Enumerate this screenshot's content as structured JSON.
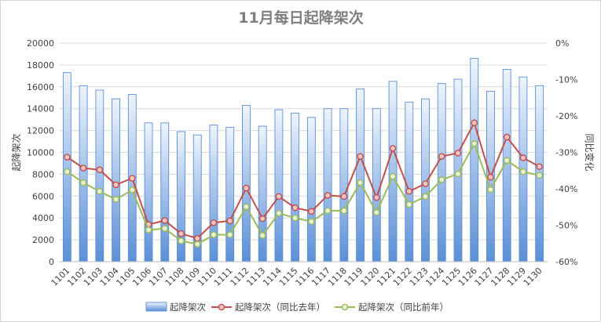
{
  "chart_data": {
    "type": "bar",
    "title": "11月每日起降架次",
    "ylabel": "起降架次",
    "y2label": "同比变化",
    "ylim": [
      0,
      20000
    ],
    "y_ticks": [
      0,
      2000,
      4000,
      6000,
      8000,
      10000,
      12000,
      14000,
      16000,
      18000,
      20000
    ],
    "y2lim": [
      -60,
      0
    ],
    "y2_ticks": [
      0,
      -10,
      -20,
      -30,
      -40,
      -50,
      -60
    ],
    "y2_unit": "%",
    "legend_position": "bottom",
    "grid": true,
    "categories": [
      "1101",
      "1102",
      "1103",
      "1104",
      "1105",
      "1106",
      "1107",
      "1108",
      "1109",
      "1110",
      "1111",
      "1112",
      "1113",
      "1114",
      "1115",
      "1116",
      "1117",
      "1118",
      "1119",
      "1120",
      "1121",
      "1122",
      "1123",
      "1124",
      "1125",
      "1126",
      "1127",
      "1128",
      "1129",
      "1130"
    ],
    "series": [
      {
        "name": "起降架次",
        "type": "bar",
        "axis": "left",
        "color": "#5b8fd6",
        "values": [
          17300,
          16100,
          15700,
          14900,
          15300,
          12700,
          12700,
          11900,
          11600,
          12500,
          12300,
          14300,
          12400,
          13900,
          13600,
          13200,
          14000,
          14000,
          15800,
          14000,
          16500,
          14600,
          14900,
          16300,
          16700,
          18600,
          15600,
          17600,
          16900,
          16100
        ]
      },
      {
        "name": "起降架次（同比去年）",
        "type": "line",
        "axis": "right",
        "color": "#c0504d",
        "marker_fill": "#f2c4c2",
        "values": [
          -31.3,
          -34.3,
          -34.8,
          -38.9,
          -37.1,
          -49.8,
          -48.7,
          -52.3,
          -53.6,
          -49.3,
          -48.8,
          -39.8,
          -48.2,
          -42.1,
          -45.2,
          -46.2,
          -41.8,
          -42.1,
          -31.1,
          -42.4,
          -28.9,
          -40.7,
          -38.6,
          -31.1,
          -30.2,
          -21.9,
          -36.8,
          -25.8,
          -31.5,
          -33.9
        ]
      },
      {
        "name": "起降架次（同比前年）",
        "type": "line",
        "axis": "right",
        "color": "#9bbb59",
        "marker_fill": "#e7f0d2",
        "values": [
          -35.3,
          -38.3,
          -40.7,
          -42.9,
          -40.3,
          -51.3,
          -50.9,
          -54.3,
          -55.2,
          -52.6,
          -52.6,
          -44.9,
          -52.8,
          -46.7,
          -48.0,
          -49.0,
          -46.0,
          -46.0,
          -38.3,
          -46.5,
          -36.6,
          -44.3,
          -42.1,
          -37.5,
          -35.9,
          -27.6,
          -40.2,
          -32.2,
          -35.3,
          -36.3
        ]
      }
    ]
  }
}
